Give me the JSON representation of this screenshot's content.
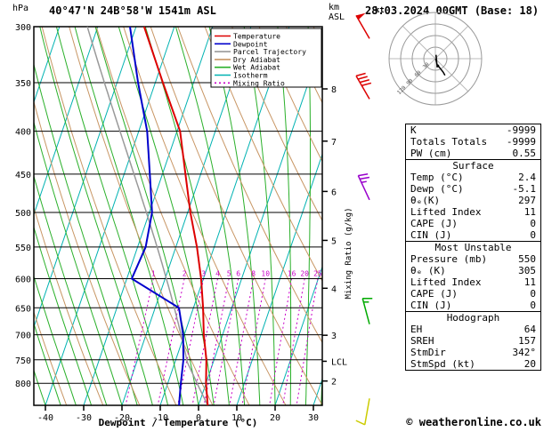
{
  "header": {
    "pressure_unit_label": "hPa",
    "station_title": "40°47'N 24B°58'W 1541m ASL",
    "datetime_title": "28.03.2024 00GMT (Base: 18)",
    "altitude_unit_label_top": "km",
    "altitude_unit_label_bottom": "ASL"
  },
  "legend": {
    "entries": [
      {
        "label": "Temperature",
        "color": "#dd0000",
        "dash": ""
      },
      {
        "label": "Dewpoint",
        "color": "#0000cc",
        "dash": ""
      },
      {
        "label": "Parcel Trajectory",
        "color": "#999999",
        "dash": ""
      },
      {
        "label": "Dry Adiabat",
        "color": "#c89664",
        "dash": ""
      },
      {
        "label": "Wet Adiabat",
        "color": "#2ab02a",
        "dash": ""
      },
      {
        "label": "Isotherm",
        "color": "#00b2b2",
        "dash": ""
      },
      {
        "label": "Mixing Ratio",
        "color": "#c800c8",
        "dash": "2,3"
      }
    ]
  },
  "colors": {
    "temperature": "#dd0000",
    "dewpoint": "#0000cc",
    "parcel": "#999999",
    "dry_adiabat": "#c89664",
    "wet_adiabat": "#2ab02a",
    "isotherm": "#00b2b2",
    "mixing_ratio": "#c800c8",
    "axis": "#000000"
  },
  "chart_data": {
    "type": "line",
    "subtype": "skew_t_log_p_sounding",
    "xlabel": "Dewpoint / Temperature (°C)",
    "pressure_axis_label": "hPa",
    "altitude_axis_label": "km ASL",
    "mixing_axis_label": "Mixing Ratio (g/kg)",
    "pressure_range_hPa": [
      300,
      850
    ],
    "temp_axis_ticks_C": [
      -40,
      -30,
      -20,
      -10,
      0,
      10,
      20,
      30
    ],
    "pressure_ticks_hPa": [
      300,
      350,
      400,
      450,
      500,
      550,
      600,
      650,
      700,
      750,
      800
    ],
    "km_ticks": [
      {
        "km": 8,
        "p": 356
      },
      {
        "km": 7,
        "p": 411
      },
      {
        "km": 6,
        "p": 472
      },
      {
        "km": 5,
        "p": 540
      },
      {
        "km": 4,
        "p": 616
      },
      {
        "km": 3,
        "p": 701
      },
      {
        "km": 2,
        "p": 795
      }
    ],
    "lcl": {
      "label": "LCL",
      "p": 753
    },
    "pressure_hPa": [
      850,
      800,
      750,
      700,
      650,
      600,
      550,
      500,
      450,
      400,
      350,
      300
    ],
    "series": [
      {
        "name": "Temperature",
        "color": "#dd0000",
        "values": [
          2.4,
          0.0,
          -2.0,
          -4.9,
          -7.5,
          -10.6,
          -14.5,
          -19.3,
          -24.0,
          -29.2,
          -38.0,
          -47.9
        ]
      },
      {
        "name": "Dewpoint",
        "color": "#0000cc",
        "values": [
          -5.1,
          -6.6,
          -8.0,
          -10.3,
          -13.8,
          -28.7,
          -27.9,
          -29.3,
          -33.3,
          -37.8,
          -44.5,
          -51.6
        ]
      }
    ],
    "parcel_start": {
      "p": 850,
      "temp_C": 2.4,
      "dewp_C": -5.1
    },
    "mixing_ratio_values_gkg": [
      1,
      2,
      3,
      4,
      5,
      6,
      8,
      10,
      16,
      20,
      25
    ],
    "mixing_label_pressure_hPa": 600,
    "background": {
      "isotherm_step_C": 10,
      "dry_adiabat_step_K": 10,
      "wet_adiabat_step_C": 4
    }
  },
  "wind_barbs": [
    {
      "p": 310,
      "dir_deg": 330,
      "speed_kt": 50,
      "color": "#dd0000"
    },
    {
      "p": 366,
      "dir_deg": 330,
      "speed_kt": 40,
      "color": "#dd0000"
    },
    {
      "p": 483,
      "dir_deg": 335,
      "speed_kt": 25,
      "color": "#9900cc"
    },
    {
      "p": 680,
      "dir_deg": 345,
      "speed_kt": 15,
      "color": "#00aa00"
    },
    {
      "p": 834,
      "dir_deg": 190,
      "speed_kt": 10,
      "color": "#cccc00"
    }
  ],
  "hodograph": {
    "unit_label": "kt",
    "rings_kt": [
      30,
      60,
      90,
      120
    ],
    "storm_motion": {
      "dir_deg": 342,
      "speed_kt": 20
    }
  },
  "table": {
    "sections": [
      {
        "rows": [
          [
            "K",
            "-9999"
          ],
          [
            "Totals Totals",
            "-9999"
          ],
          [
            "PW (cm)",
            "0.55"
          ]
        ]
      },
      {
        "title": "Surface",
        "rows": [
          [
            "Temp (°C)",
            "2.4"
          ],
          [
            "Dewp (°C)",
            "-5.1"
          ],
          [
            "θₑ(K)",
            "297"
          ],
          [
            "Lifted Index",
            "11"
          ],
          [
            "CAPE (J)",
            "0"
          ],
          [
            "CIN (J)",
            "0"
          ]
        ]
      },
      {
        "title": "Most Unstable",
        "rows": [
          [
            "Pressure (mb)",
            "550"
          ],
          [
            "θₑ (K)",
            "305"
          ],
          [
            "Lifted Index",
            "11"
          ],
          [
            "CAPE (J)",
            "0"
          ],
          [
            "CIN (J)",
            "0"
          ]
        ]
      },
      {
        "title": "Hodograph",
        "rows": [
          [
            "EH",
            "64"
          ],
          [
            "SREH",
            "157"
          ],
          [
            "StmDir",
            "342°"
          ],
          [
            "StmSpd (kt)",
            "20"
          ]
        ]
      }
    ]
  },
  "footer": {
    "credit": "© weatheronline.co.uk"
  }
}
